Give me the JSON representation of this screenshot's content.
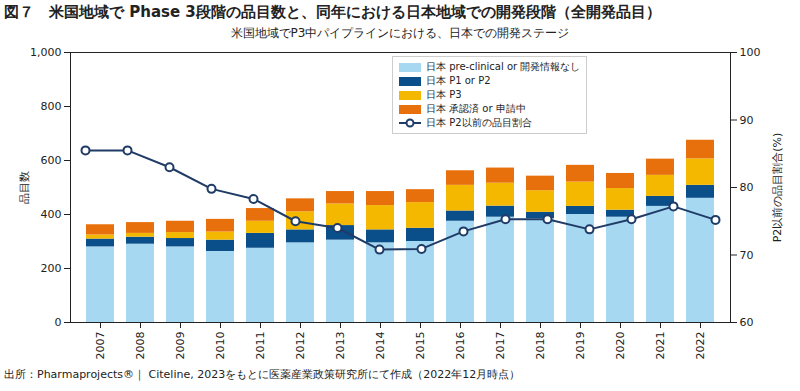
{
  "chart_data": {
    "type": "bar",
    "title": "図７　米国地域で Phase 3段階の品目数と、同年における日本地域での開発段階（全開発品目）",
    "subtitle": "米国地域でP3中パイプラインにおける、日本での開発ステージ",
    "caption": "出所：Pharmaprojects®｜ Citeline, 2023をもとに医薬産業政策研究所にて作成（2022年12月時点）",
    "y_label": "品目数",
    "y2_label": "P2以前の品目割合(%)",
    "stacked": true,
    "grid": false,
    "legend": "top",
    "categories": [
      "2007",
      "2008",
      "2009",
      "2010",
      "2011",
      "2012",
      "2013",
      "2014",
      "2015",
      "2016",
      "2017",
      "2018",
      "2019",
      "2020",
      "2021",
      "2022"
    ],
    "ylim": [
      0,
      1000
    ],
    "yticks": [
      0,
      200,
      400,
      600,
      800,
      1000
    ],
    "y2lim": [
      60,
      100
    ],
    "y2ticks": [
      60,
      70,
      80,
      90,
      100
    ],
    "series": [
      {
        "name": "日本 pre-clinical or 開発情報なし",
        "color": "#a6d8f2",
        "values": [
          280,
          290,
          280,
          263,
          275,
          295,
          305,
          295,
          300,
          375,
          390,
          385,
          400,
          390,
          430,
          460
        ]
      },
      {
        "name": "日本 P1 or P2",
        "color": "#0b4f8a",
        "values": [
          29,
          26,
          31,
          42,
          55,
          48,
          54,
          48,
          49,
          38,
          41,
          23,
          30,
          26,
          37,
          48
        ]
      },
      {
        "name": "日本 P3",
        "color": "#f5b800",
        "values": [
          15,
          14,
          22,
          30,
          45,
          67,
          80,
          90,
          95,
          95,
          85,
          80,
          90,
          80,
          78,
          98
        ]
      },
      {
        "name": "日本 承認済 or 申請中",
        "color": "#e8700c",
        "values": [
          38,
          40,
          42,
          47,
          47,
          48,
          46,
          52,
          48,
          54,
          56,
          54,
          62,
          56,
          60,
          69
        ]
      },
      {
        "name": "日本 P2以前の品目割合",
        "type": "line",
        "axis": "y2",
        "color": "#1f3b66",
        "marker": "circle",
        "line_style": "solid",
        "values": [
          85.5,
          85.5,
          83,
          79.8,
          78.3,
          75,
          74,
          70.8,
          70.9,
          73.5,
          75.3,
          75.3,
          73.8,
          75.3,
          77.2,
          75.2
        ]
      }
    ]
  }
}
